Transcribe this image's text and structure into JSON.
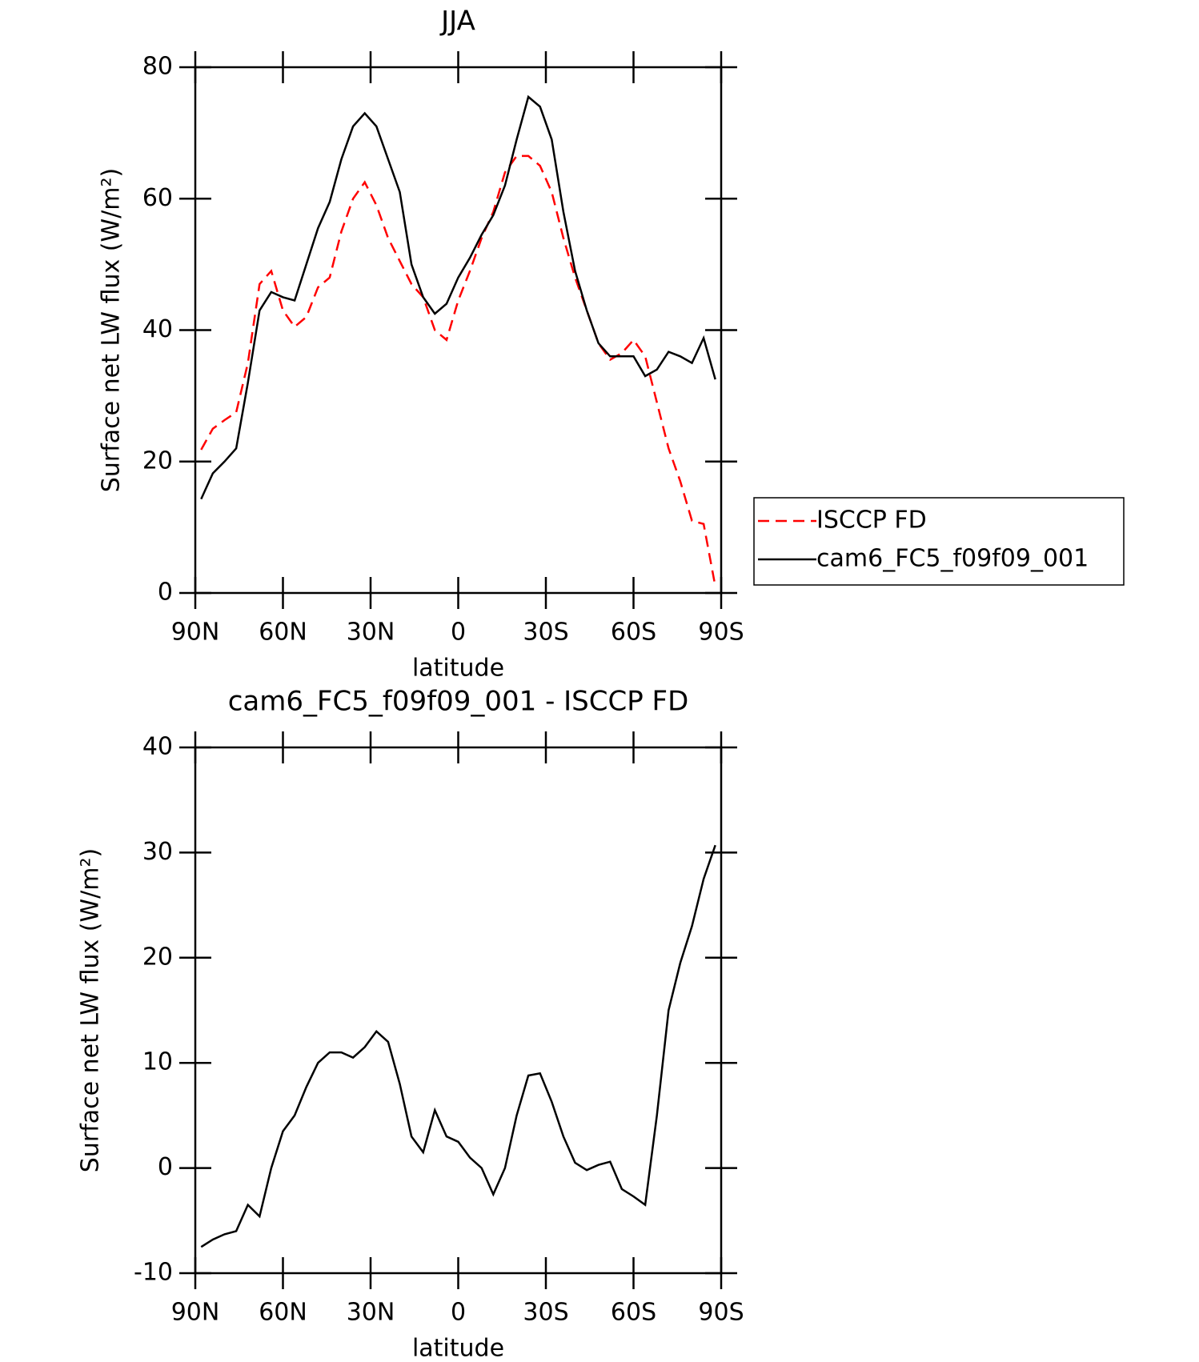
{
  "chart_data": [
    {
      "type": "line",
      "title": "JJA",
      "xlabel": "latitude",
      "ylabel": "Surface net LW flux (W/m²)",
      "x": [
        88,
        84,
        80,
        76,
        72,
        68,
        64,
        60,
        56,
        52,
        48,
        44,
        40,
        36,
        32,
        28,
        24,
        20,
        16,
        12,
        8,
        4,
        0,
        -4,
        -8,
        -12,
        -16,
        -20,
        -24,
        -28,
        -32,
        -36,
        -40,
        -44,
        -48,
        -52,
        -56,
        -60,
        -64,
        -68,
        -72,
        -76,
        -80,
        -84,
        -88
      ],
      "series": [
        {
          "name": "ISCCP FD",
          "color": "#ff0000",
          "linestyle": "dashed",
          "values": [
            21.8,
            25,
            26.3,
            27.5,
            35,
            47,
            49,
            43,
            40.5,
            42,
            46.5,
            48,
            55,
            60,
            62.5,
            59,
            54,
            50.5,
            47,
            45,
            40,
            38.5,
            44.5,
            49,
            54,
            58,
            64,
            66.5,
            66.5,
            65,
            61,
            54,
            48,
            43,
            38,
            35.5,
            36.5,
            38.5,
            36,
            29,
            22,
            17,
            11,
            10.5,
            1
          ]
        },
        {
          "name": "cam6_FC5_f09f09_001",
          "color": "#000000",
          "linestyle": "solid",
          "values": [
            14.3,
            18.2,
            20,
            22,
            32,
            43,
            45.8,
            45,
            44.5,
            50,
            55.5,
            59.5,
            66,
            71,
            73,
            71,
            66,
            61,
            50,
            45,
            42.5,
            44,
            48,
            51,
            54.5,
            57.5,
            62,
            69,
            75.5,
            74,
            69,
            58,
            49,
            43,
            38,
            36,
            36,
            36,
            33,
            34,
            36.7,
            36,
            35,
            38.8,
            32.5
          ]
        }
      ],
      "xlim": [
        90,
        -90
      ],
      "xticks": [
        {
          "value": 90,
          "label": "90N"
        },
        {
          "value": 60,
          "label": "60N"
        },
        {
          "value": 30,
          "label": "30N"
        },
        0,
        {
          "value": -30,
          "label": "30S"
        },
        {
          "value": -60,
          "label": "60S"
        },
        {
          "value": -90,
          "label": "90S"
        }
      ],
      "ylim": [
        0,
        80
      ],
      "yticks": [
        0,
        20,
        40,
        60,
        80
      ],
      "legend": "right"
    },
    {
      "type": "line",
      "title": "cam6_FC5_f09f09_001 - ISCCP FD",
      "xlabel": "latitude",
      "ylabel": "Surface net LW flux (W/m²)",
      "x": [
        88,
        84,
        80,
        76,
        72,
        68,
        64,
        60,
        56,
        52,
        48,
        44,
        40,
        36,
        32,
        28,
        24,
        20,
        16,
        12,
        8,
        4,
        0,
        -4,
        -8,
        -12,
        -16,
        -20,
        -24,
        -28,
        -32,
        -36,
        -40,
        -44,
        -48,
        -52,
        -56,
        -60,
        -64,
        -68,
        -72,
        -76,
        -80,
        -84,
        -88
      ],
      "color": "#000000",
      "values": [
        -7.5,
        -6.8,
        -6.3,
        -6,
        -3.5,
        -4.6,
        0,
        3.5,
        5,
        7.7,
        10,
        11,
        11,
        10.5,
        11.5,
        13,
        12,
        8,
        3,
        1.5,
        5.5,
        3,
        2.5,
        1,
        0,
        -2.5,
        0,
        5,
        8.8,
        9,
        6.3,
        3,
        0.5,
        -0.2,
        0.3,
        0.6,
        -2,
        -2.7,
        -3.5,
        5,
        15,
        19.5,
        23,
        27.5,
        30.7
      ],
      "xlim": [
        90,
        -90
      ],
      "xticks": [
        {
          "value": 90,
          "label": "90N"
        },
        {
          "value": 60,
          "label": "60N"
        },
        {
          "value": 30,
          "label": "30N"
        },
        0,
        {
          "value": -30,
          "label": "30S"
        },
        {
          "value": -60,
          "label": "60S"
        },
        {
          "value": -90,
          "label": "90S"
        }
      ],
      "ylim": [
        -10,
        40
      ],
      "yticks": [
        -10,
        0,
        10,
        20,
        30,
        40
      ]
    }
  ]
}
